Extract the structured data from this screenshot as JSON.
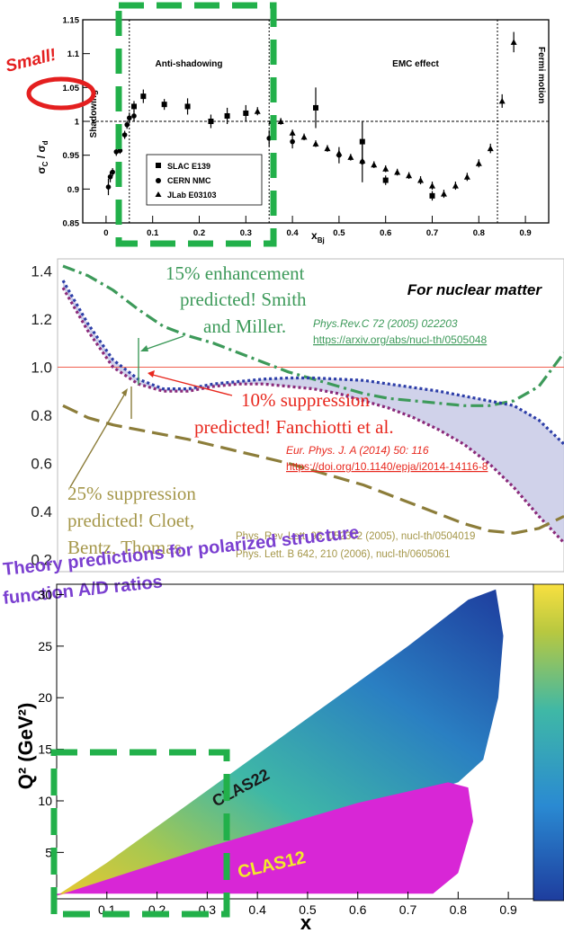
{
  "chart_data": [
    {
      "type": "scatter",
      "xlabel": "x",
      "xlabel_sub": "Bj",
      "ylabel": "σ",
      "ylabel_sub": "C",
      "ylabel_rest": " / σ",
      "ylabel_rest_sub": "d",
      "xlim": [
        -0.05,
        0.95
      ],
      "ylim": [
        0.85,
        1.15
      ],
      "x_ticks": [
        "0",
        "0.1",
        "0.2",
        "0.3",
        "0.4",
        "0.5",
        "0.6",
        "0.7",
        "0.8",
        "0.9"
      ],
      "y_ticks": [
        "0.85",
        "0.9",
        "0.95",
        "1",
        "1.05",
        "1.1",
        "1.15"
      ],
      "regions": [
        "Shadowing",
        "Anti-shadowing",
        "EMC effect",
        "Fermi motion"
      ],
      "region_bounds": [
        0.05,
        0.35,
        0.84
      ],
      "legend": [
        "SLAC E139",
        "CERN NMC",
        "JLab E03103"
      ],
      "annotation": "Small!",
      "series": [
        {
          "name": "SLAC E139",
          "marker": "square",
          "points": [
            [
              0.06,
              1.022,
              0.008
            ],
            [
              0.08,
              1.037,
              0.01
            ],
            [
              0.125,
              1.025,
              0.008
            ],
            [
              0.175,
              1.022,
              0.012
            ],
            [
              0.225,
              1.0,
              0.01
            ],
            [
              0.26,
              1.008,
              0.012
            ],
            [
              0.3,
              1.012,
              0.012
            ],
            [
              0.45,
              1.02,
              0.03
            ],
            [
              0.55,
              0.97,
              0.03
            ],
            [
              0.6,
              0.913,
              0.007
            ],
            [
              0.7,
              0.89,
              0.007
            ]
          ]
        },
        {
          "name": "CERN NMC",
          "marker": "circle",
          "points": [
            [
              0.005,
              0.903,
              0.012
            ],
            [
              0.009,
              0.918,
              0.008
            ],
            [
              0.014,
              0.925,
              0.006
            ],
            [
              0.022,
              0.955,
              0.006
            ],
            [
              0.03,
              0.957,
              0.005
            ],
            [
              0.04,
              0.98,
              0.006
            ],
            [
              0.045,
              0.995,
              0.006
            ],
            [
              0.05,
              1.005,
              0.008
            ],
            [
              0.06,
              1.008,
              0.008
            ],
            [
              0.35,
              0.975,
              0.012
            ],
            [
              0.4,
              0.97,
              0.01
            ],
            [
              0.5,
              0.95,
              0.012
            ],
            [
              0.55,
              0.94,
              0.03
            ]
          ]
        },
        {
          "name": "JLab E03103",
          "marker": "triangle",
          "points": [
            [
              0.325,
              1.015,
              0.006
            ],
            [
              0.355,
              1.0,
              0.006
            ],
            [
              0.375,
              1.0,
              0.005
            ],
            [
              0.4,
              0.983,
              0.005
            ],
            [
              0.425,
              0.977,
              0.005
            ],
            [
              0.45,
              0.967,
              0.005
            ],
            [
              0.475,
              0.96,
              0.005
            ],
            [
              0.5,
              0.953,
              0.005
            ],
            [
              0.525,
              0.947,
              0.005
            ],
            [
              0.55,
              0.942,
              0.005
            ],
            [
              0.575,
              0.936,
              0.005
            ],
            [
              0.6,
              0.93,
              0.005
            ],
            [
              0.625,
              0.925,
              0.005
            ],
            [
              0.65,
              0.92,
              0.005
            ],
            [
              0.675,
              0.913,
              0.006
            ],
            [
              0.7,
              0.905,
              0.006
            ],
            [
              0.725,
              0.893,
              0.006
            ],
            [
              0.75,
              0.905,
              0.006
            ],
            [
              0.775,
              0.918,
              0.006
            ],
            [
              0.8,
              0.938,
              0.006
            ],
            [
              0.825,
              0.96,
              0.007
            ],
            [
              0.85,
              1.03,
              0.01
            ],
            [
              0.875,
              1.117,
              0.015
            ]
          ]
        }
      ]
    },
    {
      "type": "line",
      "title": "For nuclear matter",
      "ylim": [
        0.15,
        1.45
      ],
      "y_ticks": [
        "0.2",
        "0.4",
        "0.6",
        "0.8",
        "1.0",
        "1.2",
        "1.4"
      ],
      "annotations": [
        {
          "lines": [
            "15% enhancement",
            "predicted! Smith",
            "and Miller."
          ],
          "ref": "Phys.Rev.C 72 (2005) 022203",
          "link": "https://arxiv.org/abs/nucl-th/0505048",
          "color": "#3d9a5a"
        },
        {
          "lines": [
            "10% suppression",
            "predicted! Fanchiotti et al."
          ],
          "ref": "Eur. Phys. J. A (2014) 50: 116",
          "link": "https://doi.org/10.1140/epja/i2014-14116-8",
          "color": "#e8281e"
        },
        {
          "lines": [
            "25% suppression",
            "predicted! Cloet,",
            "Bentz, Thomas"
          ],
          "ref": "Phys. Rev. Lett. 95, 052302 (2005), nucl-th/0504019",
          "ref2": "Phys. Lett. B 642, 210 (2006), nucl-th/0605061",
          "color": "#a5974a"
        }
      ],
      "overlay_text": [
        "Theory predictions for polarized structure",
        "function A/D ratios"
      ],
      "series": [
        {
          "key": "smith_miller",
          "style": "dash-dot",
          "color": "#3d9a5a",
          "x": [
            0,
            0.05,
            0.1,
            0.15,
            0.2,
            0.25,
            0.3,
            0.35,
            0.4,
            0.45,
            0.5,
            0.55,
            0.6,
            0.65,
            0.7,
            0.75,
            0.8,
            0.85,
            0.9,
            0.95,
            1.0
          ],
          "y": [
            1.42,
            1.38,
            1.32,
            1.24,
            1.17,
            1.13,
            1.1,
            1.06,
            1.02,
            0.98,
            0.95,
            0.92,
            0.89,
            0.87,
            0.86,
            0.85,
            0.84,
            0.84,
            0.86,
            0.92,
            1.06
          ]
        },
        {
          "key": "fanchiotti_upper",
          "style": "dotted",
          "color": "#2d3ea8",
          "x": [
            0,
            0.05,
            0.1,
            0.15,
            0.2,
            0.25,
            0.3,
            0.35,
            0.4,
            0.45,
            0.5,
            0.55,
            0.6,
            0.65,
            0.7,
            0.75,
            0.8,
            0.85,
            0.9,
            0.95,
            1.0
          ],
          "y": [
            1.36,
            1.18,
            1.03,
            0.95,
            0.91,
            0.91,
            0.93,
            0.94,
            0.95,
            0.955,
            0.955,
            0.95,
            0.945,
            0.93,
            0.915,
            0.9,
            0.88,
            0.86,
            0.84,
            0.78,
            0.68
          ]
        },
        {
          "key": "fanchiotti_lower",
          "style": "dotted",
          "color": "#8a2a7a",
          "x": [
            0,
            0.05,
            0.1,
            0.15,
            0.2,
            0.25,
            0.3,
            0.35,
            0.4,
            0.45,
            0.5,
            0.55,
            0.6,
            0.65,
            0.7,
            0.75,
            0.8,
            0.85,
            0.9,
            0.95,
            1.0
          ],
          "y": [
            1.33,
            1.15,
            1.0,
            0.93,
            0.9,
            0.9,
            0.92,
            0.93,
            0.93,
            0.92,
            0.91,
            0.89,
            0.86,
            0.83,
            0.79,
            0.74,
            0.68,
            0.6,
            0.5,
            0.38,
            0.27
          ]
        },
        {
          "key": "cloet",
          "style": "dashed",
          "color": "#8c7d3a",
          "x": [
            0,
            0.05,
            0.1,
            0.15,
            0.2,
            0.25,
            0.3,
            0.35,
            0.4,
            0.45,
            0.5,
            0.55,
            0.6,
            0.65,
            0.7,
            0.75,
            0.8,
            0.85,
            0.9,
            0.95,
            1.0
          ],
          "y": [
            0.84,
            0.79,
            0.76,
            0.74,
            0.72,
            0.7,
            0.675,
            0.65,
            0.625,
            0.6,
            0.57,
            0.54,
            0.51,
            0.47,
            0.43,
            0.39,
            0.35,
            0.32,
            0.31,
            0.33,
            0.38
          ]
        }
      ]
    },
    {
      "type": "heatmap",
      "xlabel": "x",
      "ylabel": "Q² (GeV²)",
      "xlim": [
        0.0,
        0.95
      ],
      "ylim": [
        0.5,
        31
      ],
      "x_ticks": [
        "0.1",
        "0.2",
        "0.3",
        "0.4",
        "0.5",
        "0.6",
        "0.7",
        "0.8",
        "0.9"
      ],
      "y_ticks": [
        "5",
        "10",
        "15",
        "20",
        "25",
        "30"
      ],
      "regions": [
        {
          "label": "CLAS22",
          "color": "#1a1a1a"
        },
        {
          "label": "CLAS12",
          "color": "#f2ea2a"
        }
      ]
    }
  ]
}
